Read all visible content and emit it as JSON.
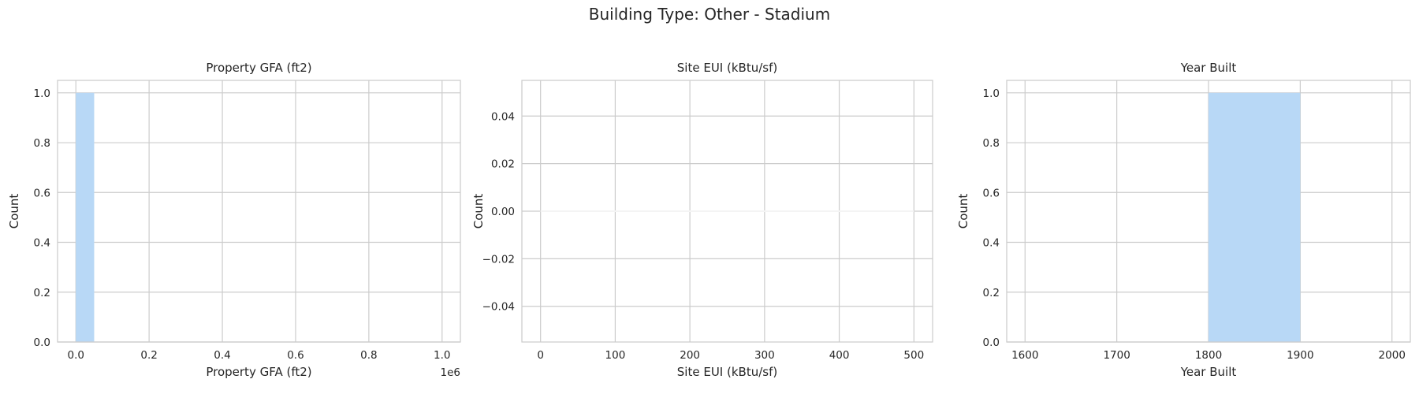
{
  "suptitle": "Building Type: Other - Stadium",
  "chart_data": [
    {
      "type": "bar",
      "title": "Property GFA (ft2)",
      "xlabel": "Property GFA (ft2)",
      "ylabel": "Count",
      "offset_label": "1e6",
      "xlim": [
        -50000,
        1050000
      ],
      "ylim": [
        0,
        1.05
      ],
      "xticks": [
        0,
        200000,
        400000,
        600000,
        800000,
        1000000
      ],
      "xtick_labels": [
        "0.0",
        "0.2",
        "0.4",
        "0.6",
        "0.8",
        "1.0"
      ],
      "yticks": [
        0,
        0.2,
        0.4,
        0.6,
        0.8,
        1.0
      ],
      "ytick_labels": [
        "0.0",
        "0.2",
        "0.4",
        "0.6",
        "0.8",
        "1.0"
      ],
      "bins": [
        {
          "x0": 0,
          "x1": 50000,
          "count": 1
        }
      ]
    },
    {
      "type": "bar",
      "title": "Site EUI (kBtu/sf)",
      "xlabel": "Site EUI (kBtu/sf)",
      "ylabel": "Count",
      "offset_label": "",
      "xlim": [
        -25,
        525
      ],
      "ylim": [
        -0.055,
        0.055
      ],
      "xticks": [
        0,
        100,
        200,
        300,
        400,
        500
      ],
      "xtick_labels": [
        "0",
        "100",
        "200",
        "300",
        "400",
        "500"
      ],
      "yticks": [
        -0.04,
        -0.02,
        0.0,
        0.02,
        0.04
      ],
      "ytick_labels": [
        "−0.04",
        "−0.02",
        "0.00",
        "0.02",
        "0.04"
      ],
      "bins": [],
      "zero_bins_range": [
        0,
        500
      ]
    },
    {
      "type": "bar",
      "title": "Year Built",
      "xlabel": "Year Built",
      "ylabel": "Count",
      "offset_label": "",
      "xlim": [
        1580,
        2020
      ],
      "ylim": [
        0,
        1.05
      ],
      "xticks": [
        1600,
        1700,
        1800,
        1900,
        2000
      ],
      "xtick_labels": [
        "1600",
        "1700",
        "1800",
        "1900",
        "2000"
      ],
      "yticks": [
        0,
        0.2,
        0.4,
        0.6,
        0.8,
        1.0
      ],
      "ytick_labels": [
        "0.0",
        "0.2",
        "0.4",
        "0.6",
        "0.8",
        "1.0"
      ],
      "bins": [
        {
          "x0": 1800,
          "x1": 1900,
          "count": 1
        }
      ]
    }
  ]
}
